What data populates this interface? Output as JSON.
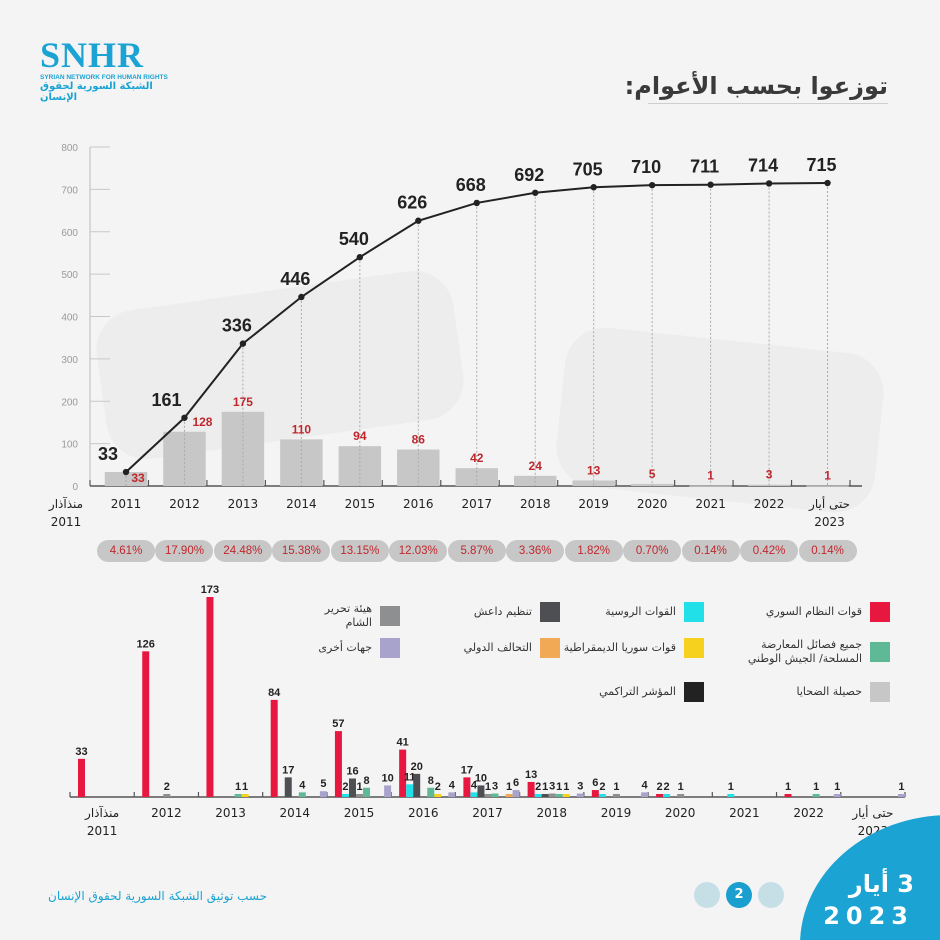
{
  "logo": {
    "mark": "SNHR",
    "english": "SYRIAN NETWORK FOR HUMAN RIGHTS",
    "arabic": "الشبكة السورية لحقوق الإنسان"
  },
  "header": {
    "title": "توزعوا بحسب الأعوام:"
  },
  "colors": {
    "brand": "#1aa3d3",
    "regime": "#e8173f",
    "russia": "#22e0e8",
    "isis": "#4d4f52",
    "hts": "#8e8f91",
    "opposition": "#5fb896",
    "sdf": "#f6d21f",
    "coalition": "#f2a955",
    "others": "#a8a3cc",
    "total": "#c7c7c7",
    "cumulative": "#222222",
    "value_label": "#c0272d"
  },
  "chart_data": [
    {
      "type": "bar",
      "title": "توزعوا بحسب الأعوام:",
      "categories": [
        "منذآذار 2011",
        "2012",
        "2013",
        "2014",
        "2015",
        "2016",
        "2017",
        "2018",
        "2019",
        "2020",
        "2021",
        "2022",
        "حتى أيار 2023"
      ],
      "series": [
        {
          "name": "حصيلة الضحايا",
          "type": "bar",
          "values": [
            33,
            128,
            175,
            110,
            94,
            86,
            42,
            24,
            13,
            5,
            1,
            3,
            1
          ]
        },
        {
          "name": "المؤشر التراكمي",
          "type": "line",
          "values": [
            33,
            161,
            336,
            446,
            540,
            626,
            668,
            692,
            705,
            710,
            711,
            714,
            715
          ]
        }
      ],
      "percentages": [
        "4.61%",
        "17.90%",
        "24.48%",
        "15.38%",
        "13.15%",
        "12.03%",
        "5.87%",
        "3.36%",
        "1.82%",
        "0.70%",
        "0.14%",
        "0.42%",
        "0.14%"
      ],
      "yticks": [
        0,
        100,
        200,
        300,
        400,
        500,
        600,
        700,
        800
      ],
      "ylim": [
        0,
        800
      ],
      "xlabel": "",
      "ylabel": "",
      "grid": false
    },
    {
      "type": "bar",
      "title": "",
      "categories": [
        "منذآذار 2011",
        "2012",
        "2013",
        "2014",
        "2015",
        "2016",
        "2017",
        "2018",
        "2019",
        "2020",
        "2021",
        "2022",
        "حتى أيار 2023"
      ],
      "series_order": [
        "regime",
        "russia",
        "isis",
        "hts",
        "opposition",
        "sdf",
        "coalition",
        "others"
      ],
      "series": [
        {
          "key": "regime",
          "name": "قوات النظام السوري",
          "values": [
            33,
            126,
            173,
            84,
            57,
            41,
            17,
            13,
            6,
            2,
            0,
            1,
            0
          ]
        },
        {
          "key": "russia",
          "name": "القوات الروسية",
          "values": [
            0,
            0,
            0,
            0,
            2,
            11,
            4,
            2,
            2,
            2,
            1,
            0,
            0
          ]
        },
        {
          "key": "isis",
          "name": "تنظيم داعش",
          "values": [
            0,
            0,
            0,
            17,
            16,
            20,
            10,
            1,
            0,
            0,
            0,
            0,
            0
          ]
        },
        {
          "key": "hts",
          "name": "هيئة تحرير الشام",
          "values": [
            0,
            2,
            0,
            0,
            1,
            0,
            1,
            3,
            1,
            1,
            0,
            0,
            0
          ]
        },
        {
          "key": "opposition",
          "name": "جميع فصائل المعارضة المسلحة/ الجيش الوطني",
          "values": [
            0,
            0,
            1,
            4,
            8,
            8,
            3,
            1,
            0,
            0,
            0,
            1,
            0
          ]
        },
        {
          "key": "sdf",
          "name": "قوات سوريا الديمقراطية",
          "values": [
            0,
            0,
            1,
            0,
            0,
            2,
            0,
            1,
            0,
            0,
            0,
            0,
            0
          ]
        },
        {
          "key": "coalition",
          "name": "التحالف الدولي",
          "values": [
            0,
            0,
            0,
            0,
            0,
            0,
            1,
            0,
            0,
            0,
            0,
            0,
            0
          ]
        },
        {
          "key": "others",
          "name": "جهات أخرى",
          "values": [
            0,
            0,
            0,
            5,
            10,
            4,
            6,
            3,
            4,
            0,
            0,
            1,
            1
          ]
        }
      ],
      "ylim": [
        0,
        180
      ],
      "grid": false
    }
  ],
  "legend": [
    {
      "key": "regime",
      "label": "قوات النظام السوري"
    },
    {
      "key": "russia",
      "label": "القوات الروسية"
    },
    {
      "key": "isis",
      "label": "تنظيم داعش"
    },
    {
      "key": "hts",
      "label": "هيئة تحرير الشام"
    },
    {
      "key": "opposition",
      "label": "جميع فصائل المعارضة المسلحة/ الجيش الوطني"
    },
    {
      "key": "sdf",
      "label": "قوات سوريا الديمقراطية"
    },
    {
      "key": "coalition",
      "label": "التحالف الدولي"
    },
    {
      "key": "others",
      "label": "جهات أخرى"
    },
    {
      "key": "total",
      "label": "حصيلة الضحايا"
    },
    {
      "key": "cumulative",
      "label": "المؤشر التراكمي"
    }
  ],
  "footer": {
    "source": "حسب توثيق الشبكة السورية لحقوق الإنسان",
    "page": "2",
    "date_month": "3 أيار",
    "date_year": "2023"
  }
}
